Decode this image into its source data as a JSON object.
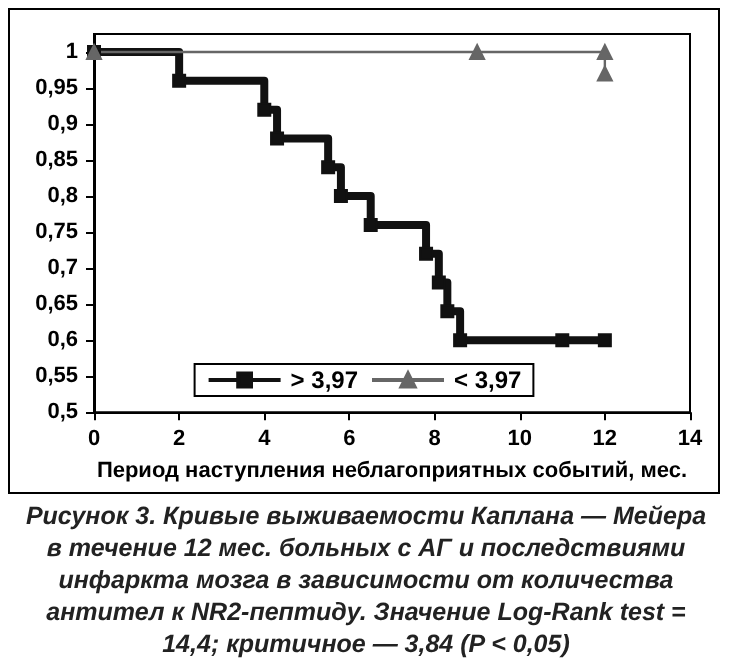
{
  "chart_data": {
    "type": "step",
    "xlabel": "Период наступления неблагоприятных событий, мес.",
    "annotations": [
      "Рисунок 3. Кривые выживаемости Каплана — Мейера в течение 12 мес. больных с АГ и последствиями инфаркта мозга в зависимости от количества антител к NR2-пептиду. Значение Log-Rank test = 14,4; критичное — 3,84 (P < 0,05)"
    ],
    "series": [
      {
        "name": "> 3,97",
        "color": "#111111",
        "marker": "square",
        "x": [
          0,
          2,
          4,
          4.3,
          5.5,
          5.8,
          6.5,
          7.8,
          8.1,
          8.3,
          8.6,
          11,
          12
        ],
        "values": [
          1,
          0.96,
          0.92,
          0.88,
          0.84,
          0.8,
          0.76,
          0.72,
          0.68,
          0.64,
          0.6,
          0.6,
          0.6
        ]
      },
      {
        "name": "< 3,97",
        "color": "#666666",
        "marker": "triangle",
        "x": [
          0,
          9,
          12,
          12
        ],
        "values": [
          1,
          1,
          1,
          0.97
        ]
      }
    ],
    "xlim": [
      0,
      14
    ],
    "xticks": [
      0,
      2,
      4,
      6,
      8,
      10,
      12,
      14
    ],
    "ylim": [
      0.5,
      1.025
    ],
    "yticks": [
      {
        "value": 0.5,
        "label": "0,5"
      },
      {
        "value": 0.55,
        "label": "0,55"
      },
      {
        "value": 0.6,
        "label": "0,6"
      },
      {
        "value": 0.65,
        "label": "0,65"
      },
      {
        "value": 0.7,
        "label": "0,7"
      },
      {
        "value": 0.75,
        "label": "0,75"
      },
      {
        "value": 0.8,
        "label": "0,8"
      },
      {
        "value": 0.85,
        "label": "0,85"
      },
      {
        "value": 0.9,
        "label": "0,9"
      },
      {
        "value": 0.95,
        "label": "0,95"
      },
      {
        "value": 1,
        "label": "1"
      }
    ],
    "legend": "bottom",
    "grid": false
  }
}
